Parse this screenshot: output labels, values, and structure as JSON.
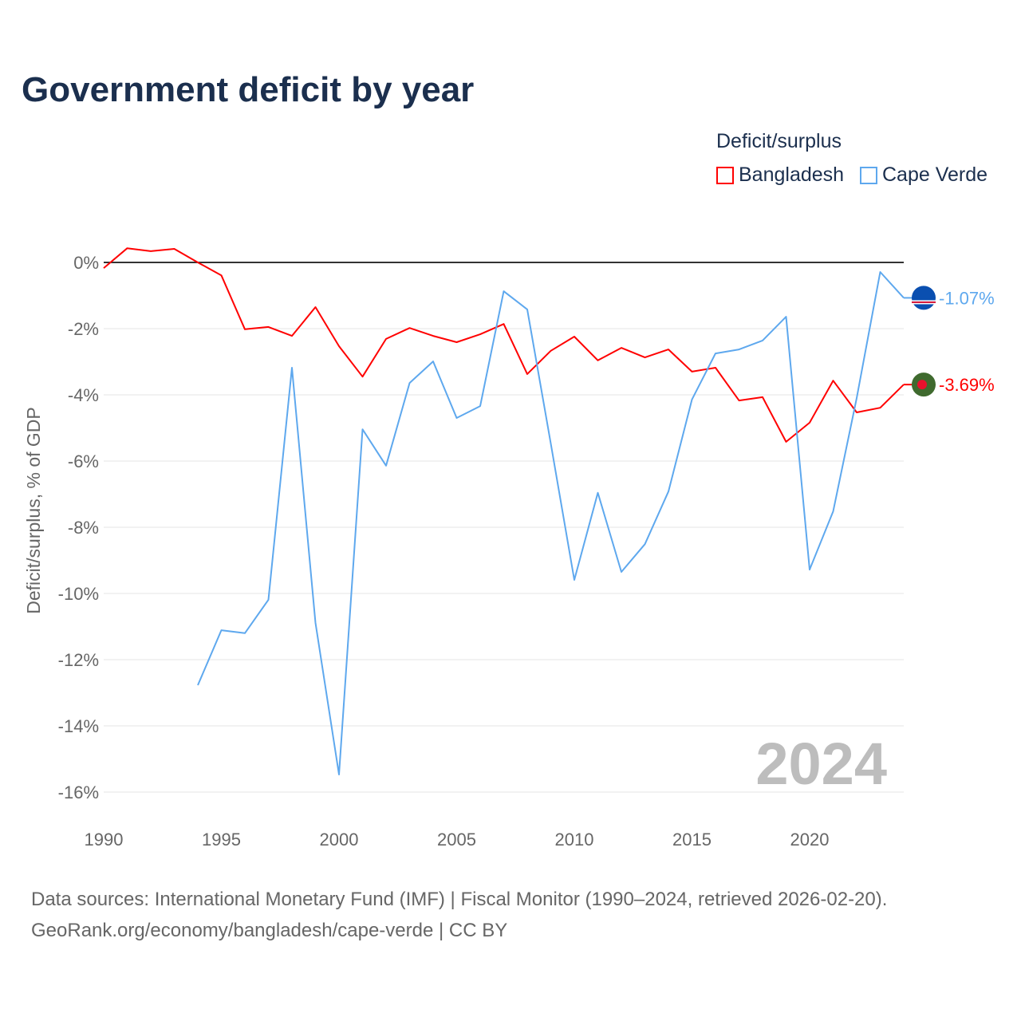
{
  "chart_data": {
    "type": "line",
    "title": "Government deficit by year",
    "ylabel": "Deficit/surplus, % of GDP",
    "xlabel": "",
    "ylim": [
      -16,
      0
    ],
    "xlim": [
      1990,
      2024
    ],
    "y_ticks": [
      "0%",
      "-2%",
      "-4%",
      "-6%",
      "-8%",
      "-10%",
      "-12%",
      "-14%",
      "-16%"
    ],
    "y_tick_values": [
      0,
      -2,
      -4,
      -6,
      -8,
      -10,
      -12,
      -14,
      -16
    ],
    "x_ticks": [
      "1990",
      "1995",
      "2000",
      "2005",
      "2010",
      "2015",
      "2020"
    ],
    "x_tick_values": [
      1990,
      1995,
      2000,
      2005,
      2010,
      2015,
      2020
    ],
    "grid": true,
    "legend_title": "Deficit/surplus",
    "legend_placement": "top-right",
    "year_watermark": "2024",
    "series": [
      {
        "name": "Bangladesh",
        "color": "#ff0000",
        "end_label": "-3.69%",
        "x": [
          1990,
          1991,
          1992,
          1993,
          1994,
          1995,
          1996,
          1997,
          1998,
          1999,
          2000,
          2001,
          2002,
          2003,
          2004,
          2005,
          2006,
          2007,
          2008,
          2009,
          2010,
          2011,
          2012,
          2013,
          2014,
          2015,
          2016,
          2017,
          2018,
          2019,
          2020,
          2021,
          2022,
          2023,
          2024
        ],
        "values": [
          -0.17,
          0.43,
          0.34,
          0.41,
          0.0,
          -0.39,
          -2.02,
          -1.95,
          -2.22,
          -1.35,
          -2.53,
          -3.45,
          -2.31,
          -1.98,
          -2.22,
          -2.41,
          -2.17,
          -1.86,
          -3.37,
          -2.67,
          -2.24,
          -2.96,
          -2.58,
          -2.87,
          -2.63,
          -3.3,
          -3.18,
          -4.17,
          -4.07,
          -5.42,
          -4.84,
          -3.57,
          -4.53,
          -4.39,
          -3.69
        ]
      },
      {
        "name": "Cape Verde",
        "color": "#5ea8ee",
        "end_label": "-1.07%",
        "x": [
          1994,
          1995,
          1996,
          1997,
          1998,
          1999,
          2000,
          2001,
          2002,
          2003,
          2004,
          2005,
          2006,
          2007,
          2008,
          2009,
          2010,
          2011,
          2012,
          2013,
          2014,
          2015,
          2016,
          2017,
          2018,
          2019,
          2020,
          2021,
          2022,
          2023,
          2024
        ],
        "values": [
          -12.77,
          -11.11,
          -11.2,
          -10.19,
          -3.18,
          -10.89,
          -15.47,
          -5.04,
          -6.14,
          -3.64,
          -2.99,
          -4.7,
          -4.34,
          -0.87,
          -1.42,
          -5.47,
          -9.59,
          -6.96,
          -9.35,
          -8.51,
          -6.92,
          -4.14,
          -2.75,
          -2.63,
          -2.36,
          -1.64,
          -9.28,
          -7.52,
          -4.1,
          -0.29,
          -1.07
        ]
      }
    ]
  },
  "footer": {
    "line1": "Data sources: International Monetary Fund (IMF) | Fiscal Monitor (1990–2024, retrieved 2026-02-20).",
    "line2": "GeoRank.org/economy/bangladesh/cape-verde | CC BY"
  }
}
